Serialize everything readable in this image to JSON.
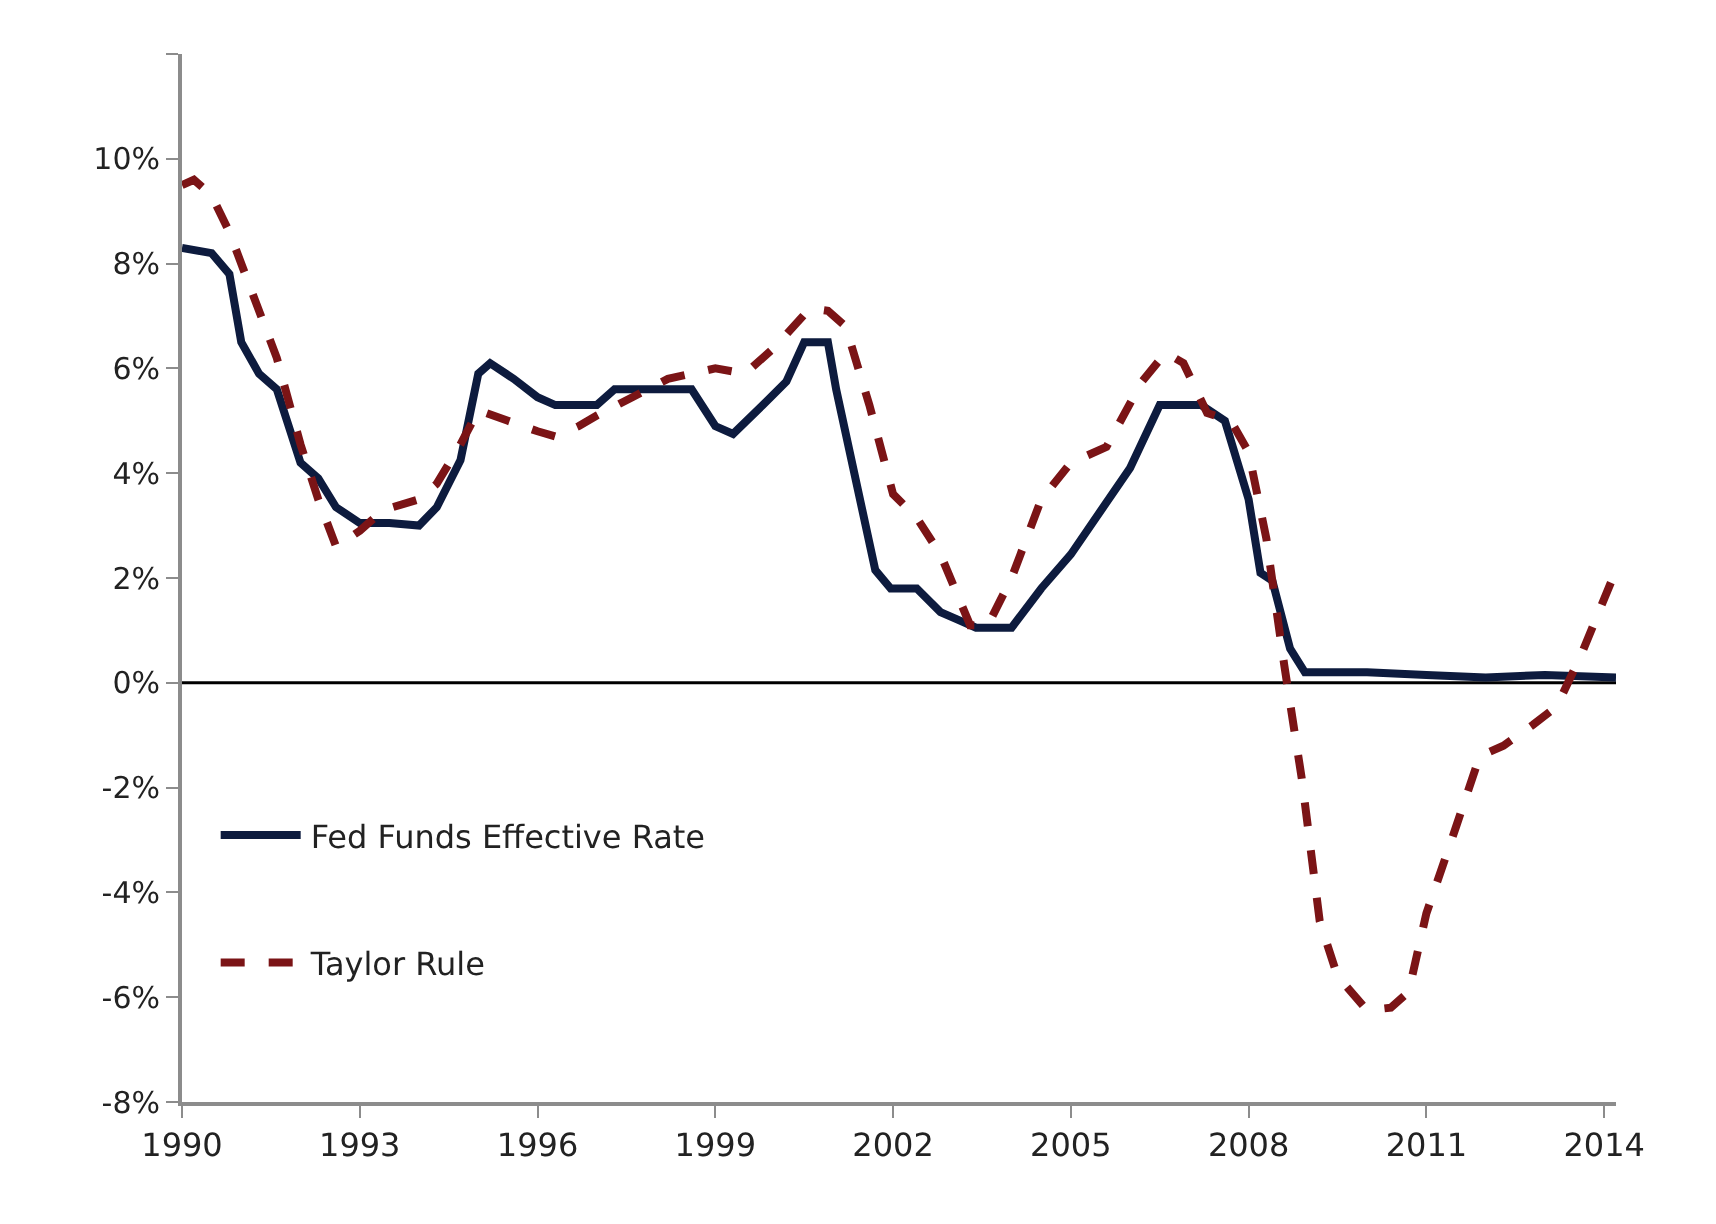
{
  "chart_data": {
    "type": "line",
    "series": [
      {
        "name": "Fed Funds Effective Rate",
        "color": "#0d1b3e",
        "line_style": "solid",
        "x": [
          1990.0,
          1990.5,
          1990.8,
          1991.0,
          1991.3,
          1991.6,
          1992.0,
          1992.3,
          1992.6,
          1993.0,
          1993.5,
          1994.0,
          1994.3,
          1994.7,
          1995.0,
          1995.2,
          1995.6,
          1996.0,
          1996.3,
          1997.0,
          1997.3,
          1998.0,
          1998.6,
          1999.0,
          1999.3,
          1999.8,
          2000.2,
          2000.5,
          2000.9,
          2001.04,
          2001.7,
          2001.96,
          2002.4,
          2002.8,
          2003.1,
          2003.4,
          2004.0,
          2004.5,
          2005.0,
          2006.0,
          2006.5,
          2007.2,
          2007.6,
          2008.0,
          2008.2,
          2008.4,
          2008.7,
          2008.95,
          2010.0,
          2011.0,
          2012.0,
          2013.0,
          2014.2
        ],
        "values": [
          8.3,
          8.2,
          7.8,
          6.5,
          5.9,
          5.6,
          4.2,
          3.9,
          3.35,
          3.05,
          3.05,
          3.0,
          3.35,
          4.25,
          5.9,
          6.1,
          5.8,
          5.45,
          5.3,
          5.3,
          5.6,
          5.6,
          5.6,
          4.9,
          4.75,
          5.3,
          5.75,
          6.5,
          6.5,
          5.6,
          2.15,
          1.8,
          1.8,
          1.35,
          1.2,
          1.05,
          1.05,
          1.8,
          2.45,
          4.1,
          5.3,
          5.3,
          5.0,
          3.5,
          2.1,
          1.95,
          0.65,
          0.2,
          0.2,
          0.15,
          0.1,
          0.15,
          0.1
        ]
      },
      {
        "name": "Taylor Rule",
        "color": "#7b1416",
        "line_style": "dashed",
        "x": [
          1990.0,
          1990.2,
          1990.5,
          1990.8,
          1991.2,
          1991.6,
          1992.0,
          1992.3,
          1992.6,
          1993.0,
          1993.4,
          1994.0,
          1994.3,
          1994.7,
          1995.0,
          1995.5,
          1996.0,
          1996.3,
          1996.7,
          1997.0,
          1997.6,
          1998.2,
          1999.0,
          1999.5,
          2000.0,
          2000.6,
          2000.9,
          2001.2,
          2001.6,
          2002.0,
          2002.4,
          2002.8,
          2003.3,
          2003.6,
          2004.0,
          2004.5,
          2005.0,
          2005.6,
          2006.2,
          2006.6,
          2006.9,
          2007.3,
          2007.7,
          2008.0,
          2008.3,
          2008.6,
          2008.9,
          2009.2,
          2009.5,
          2010.0,
          2010.4,
          2010.7,
          2011.0,
          2011.5,
          2011.9,
          2012.3,
          2012.8,
          2013.2,
          2013.6,
          2014.2
        ],
        "values": [
          9.5,
          9.6,
          9.3,
          8.6,
          7.4,
          6.2,
          4.55,
          3.5,
          2.6,
          2.9,
          3.3,
          3.5,
          3.8,
          4.55,
          5.2,
          5.0,
          4.8,
          4.7,
          4.9,
          5.1,
          5.45,
          5.8,
          6.0,
          5.9,
          6.4,
          7.15,
          7.1,
          6.8,
          5.3,
          3.6,
          3.15,
          2.45,
          1.1,
          1.1,
          2.0,
          3.5,
          4.2,
          4.5,
          5.75,
          6.3,
          6.1,
          5.15,
          5.0,
          4.4,
          2.75,
          0.35,
          -1.85,
          -4.55,
          -5.6,
          -6.25,
          -6.2,
          -5.9,
          -4.4,
          -2.75,
          -1.4,
          -1.2,
          -0.8,
          -0.45,
          0.5,
          2.15
        ]
      }
    ],
    "xlim": [
      1990,
      2014.2
    ],
    "xticks": [
      1990,
      1993,
      1996,
      1999,
      2002,
      2005,
      2008,
      2011,
      2014
    ],
    "ylim": [
      -8,
      12
    ],
    "yticks": [
      {
        "value": -8,
        "label": "-8%"
      },
      {
        "value": -6,
        "label": "-6%"
      },
      {
        "value": -4,
        "label": "-4%"
      },
      {
        "value": -2,
        "label": "-2%"
      },
      {
        "value": 0,
        "label": "0%"
      },
      {
        "value": 2,
        "label": "2%"
      },
      {
        "value": 4,
        "label": "4%"
      },
      {
        "value": 6,
        "label": "6%"
      },
      {
        "value": 8,
        "label": "8%"
      },
      {
        "value": 10,
        "label": "10%"
      },
      {
        "value": 12,
        "label": null
      }
    ],
    "ref_lines": [
      {
        "axis": "y",
        "value": 0,
        "color": "#000000"
      }
    ],
    "grid": false,
    "legend": "bottom left",
    "marker": "none"
  }
}
